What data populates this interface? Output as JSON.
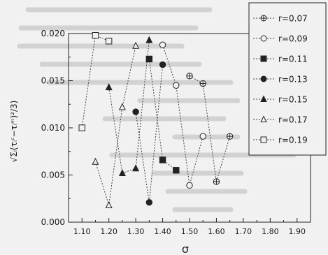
{
  "chart_data": {
    "type": "scatter",
    "title": "",
    "xlabel": "σ",
    "ylabel": "√Σᵢ(τᵢᶜ−τᵢᵐ)²/3)",
    "xlim": [
      1.05,
      1.95
    ],
    "ylim": [
      0.0,
      0.02
    ],
    "xticks": [
      1.1,
      1.2,
      1.3,
      1.4,
      1.5,
      1.6,
      1.7,
      1.8,
      1.9
    ],
    "yticks": [
      0.0,
      0.005,
      0.01,
      0.015,
      0.02
    ],
    "xtick_labels": [
      "1.10",
      "1.20",
      "1.30",
      "1.40",
      "1.50",
      "1.60",
      "1.70",
      "1.80",
      "1.90"
    ],
    "ytick_labels": [
      "0.000",
      "0.005",
      "0.010",
      "0.015",
      "0.020"
    ],
    "grid": false,
    "legend_position": "top-right",
    "line_style": "dotted",
    "series": [
      {
        "name": "r=0.07",
        "marker": "circle-plus",
        "x": [
          1.5,
          1.55,
          1.6,
          1.65
        ],
        "y": [
          0.0155,
          0.0147,
          0.0043,
          0.0091
        ]
      },
      {
        "name": "r=0.09",
        "marker": "open-circle",
        "x": [
          1.4,
          1.45,
          1.5,
          1.55
        ],
        "y": [
          0.0188,
          0.0145,
          0.0039,
          0.0091
        ]
      },
      {
        "name": "r=0.11",
        "marker": "filled-square",
        "x": [
          1.35,
          1.4,
          1.45
        ],
        "y": [
          0.0173,
          0.0066,
          0.0055
        ]
      },
      {
        "name": "r=0.13",
        "marker": "filled-circle",
        "x": [
          1.3,
          1.35,
          1.4
        ],
        "y": [
          0.0117,
          0.0021,
          0.0167
        ]
      },
      {
        "name": "r=0.15",
        "marker": "filled-triangle",
        "x": [
          1.2,
          1.25,
          1.3,
          1.35
        ],
        "y": [
          0.0143,
          0.0052,
          0.0057,
          0.0193
        ]
      },
      {
        "name": "r=0.17",
        "marker": "open-triangle",
        "x": [
          1.15,
          1.2,
          1.25,
          1.3
        ],
        "y": [
          0.0064,
          0.0018,
          0.0122,
          0.0187
        ]
      },
      {
        "name": "r=0.19",
        "marker": "open-square",
        "x": [
          1.1,
          1.15,
          1.2
        ],
        "y": [
          0.01,
          0.0198,
          0.0192
        ]
      }
    ]
  }
}
